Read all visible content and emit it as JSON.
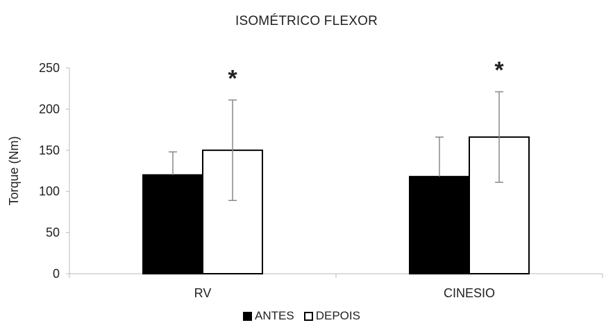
{
  "chart_data": {
    "type": "bar",
    "title": "ISOMÉTRICO FLEXOR",
    "ylabel": "Torque (Nm)",
    "xlabel": "",
    "ylim": [
      0,
      250
    ],
    "yticks": [
      "0",
      "50",
      "100",
      "150",
      "200",
      "250"
    ],
    "categories": [
      "RV",
      "CINESIO"
    ],
    "series": [
      {
        "name": "ANTES",
        "values": [
          120,
          118
        ],
        "error": [
          28,
          48
        ],
        "color": "#000000"
      },
      {
        "name": "DEPOIS",
        "values": [
          150,
          166
        ],
        "error": [
          61,
          55
        ],
        "color": "#ffffff"
      }
    ],
    "annotations": [
      {
        "text": "*",
        "category": "RV"
      },
      {
        "text": "*",
        "category": "CINESIO"
      }
    ],
    "legend_position": "bottom"
  }
}
